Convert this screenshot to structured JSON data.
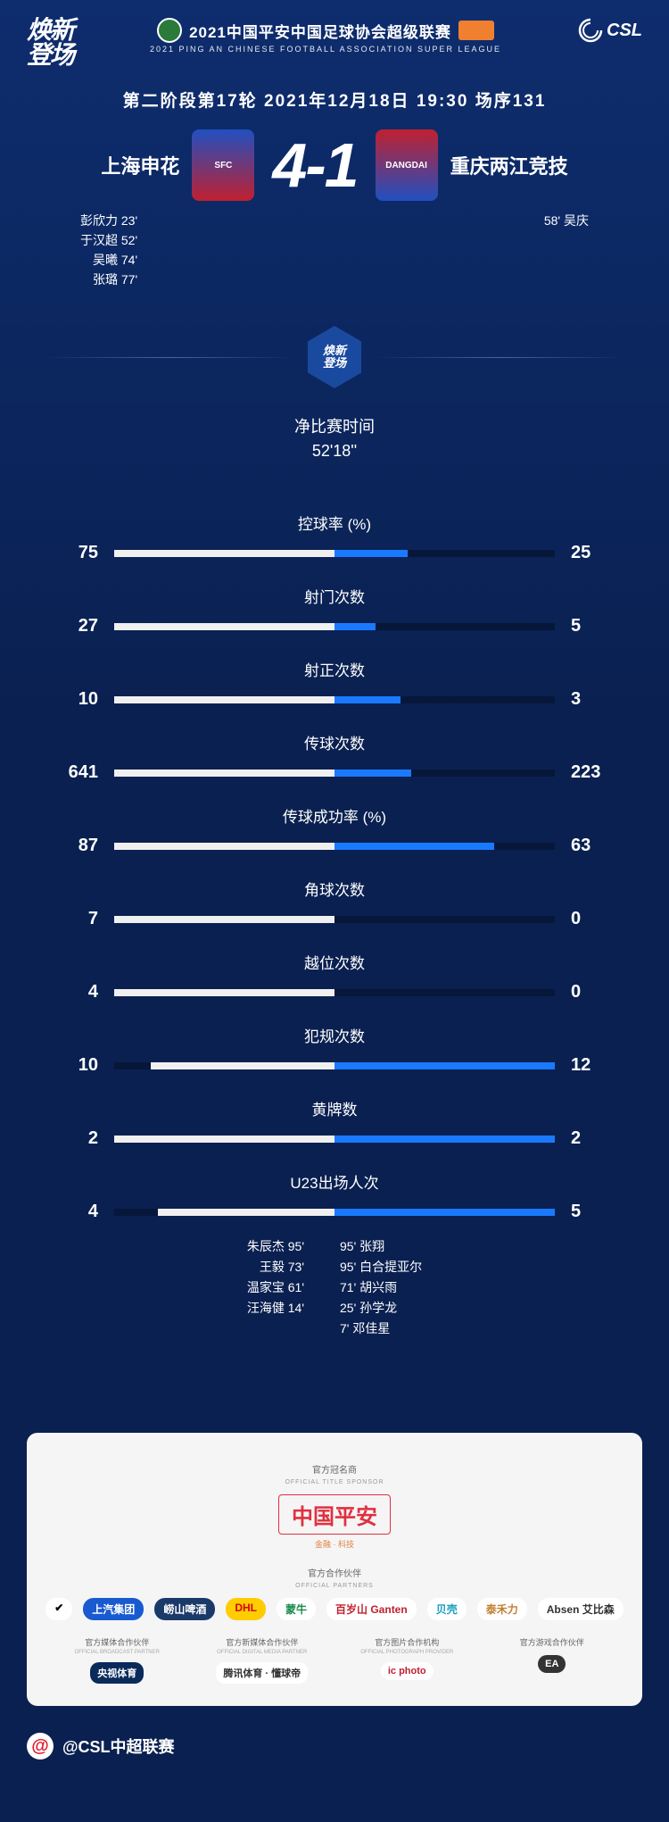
{
  "header": {
    "logo_left": "焕新\n登场",
    "title_cn": "2021中国平安中国足球协会超级联赛",
    "title_en": "2021 PING AN CHINESE FOOTBALL ASSOCIATION SUPER LEAGUE",
    "logo_right": "CSL"
  },
  "match": {
    "info": "第二阶段第17轮  2021年12月18日 19:30 场序131",
    "home_name": "上海申花",
    "away_name": "重庆两江竞技",
    "score": "4-1",
    "home_crest_text": "SFC",
    "away_crest_text": "DANGDAI",
    "home_scorers": [
      "彭欣力  23'",
      "于汉超  52'",
      "吴曦  74'",
      "张璐  77'"
    ],
    "away_scorers": [
      "58'  吴庆"
    ]
  },
  "badge_text": "焕新\n登场",
  "net_time": {
    "label": "净比赛时间",
    "value": "52'18''"
  },
  "colors": {
    "home_bar": "#f0f0f0",
    "away_bar": "#1a7aff",
    "bar_bg": "#06173a",
    "page_bg_top": "#0e2d6e",
    "page_bg_bottom": "#0a2050"
  },
  "stats": [
    {
      "label": "控球率 (%)",
      "home": 75,
      "away": 25,
      "home_pct": 50,
      "away_pct": 16.7
    },
    {
      "label": "射门次数",
      "home": 27,
      "away": 5,
      "home_pct": 50,
      "away_pct": 9.3
    },
    {
      "label": "射正次数",
      "home": 10,
      "away": 3,
      "home_pct": 50,
      "away_pct": 15
    },
    {
      "label": "传球次数",
      "home": 641,
      "away": 223,
      "home_pct": 50,
      "away_pct": 17.4
    },
    {
      "label": "传球成功率 (%)",
      "home": 87,
      "away": 63,
      "home_pct": 50,
      "away_pct": 36.2
    },
    {
      "label": "角球次数",
      "home": 7,
      "away": 0,
      "home_pct": 50,
      "away_pct": 0
    },
    {
      "label": "越位次数",
      "home": 4,
      "away": 0,
      "home_pct": 50,
      "away_pct": 0
    },
    {
      "label": "犯规次数",
      "home": 10,
      "away": 12,
      "home_pct": 41.7,
      "away_pct": 50
    },
    {
      "label": "黄牌数",
      "home": 2,
      "away": 2,
      "home_pct": 50,
      "away_pct": 50
    },
    {
      "label": "U23出场人次",
      "home": 4,
      "away": 5,
      "home_pct": 40,
      "away_pct": 50
    }
  ],
  "u23": {
    "home": [
      "朱辰杰  95'",
      "王毅  73'",
      "温家宝  61'",
      "汪海健  14'"
    ],
    "away": [
      "95'  张翔",
      "95'  白合提亚尔",
      "71'  胡兴雨",
      "25'  孙学龙",
      "7'  邓佳星"
    ]
  },
  "sponsors": {
    "title_section": {
      "label": "官方冠名商",
      "label_en": "OFFICIAL TITLE SPONSOR",
      "main": "中国平安",
      "sub": "金融 · 科技"
    },
    "partners_label": "官方合作伙伴",
    "partners_label_en": "OFFICIAL PARTNERS",
    "partners": [
      {
        "text": "✔",
        "bg": "#ffffff",
        "color": "#000000"
      },
      {
        "text": "上汽集团",
        "bg": "#1a5ad0",
        "color": "#ffffff"
      },
      {
        "text": "崂山啤酒",
        "bg": "#1a3a6a",
        "color": "#ffffff"
      },
      {
        "text": "DHL",
        "bg": "#ffcc00",
        "color": "#d40511"
      },
      {
        "text": "蒙牛",
        "bg": "#ffffff",
        "color": "#1a8a4a"
      },
      {
        "text": "百岁山 Ganten",
        "bg": "#ffffff",
        "color": "#c02030"
      },
      {
        "text": "贝壳",
        "bg": "#ffffff",
        "color": "#1aa0c0"
      },
      {
        "text": "泰禾力",
        "bg": "#ffffff",
        "color": "#c08030"
      },
      {
        "text": "Absen 艾比森",
        "bg": "#ffffff",
        "color": "#333333"
      }
    ],
    "bottom": [
      {
        "label": "官方媒体合作伙伴",
        "label_en": "OFFICIAL BROADCAST PARTNER",
        "logo": "央视体育",
        "bg": "#0a2a5a",
        "color": "#ffffff"
      },
      {
        "label": "官方新媒体合作伙伴",
        "label_en": "OFFICIAL DIGITAL MEDIA PARTNER",
        "logo": "腾讯体育 · 懂球帝",
        "bg": "#ffffff",
        "color": "#333333"
      },
      {
        "label": "官方图片合作机构",
        "label_en": "OFFICIAL PHOTOGRAPH PROVIDER",
        "logo": "ic photo",
        "bg": "#ffffff",
        "color": "#c02030"
      },
      {
        "label": "官方游戏合作伙伴",
        "label_en": "",
        "logo": "EA",
        "bg": "#333333",
        "color": "#ffffff"
      }
    ]
  },
  "footer": {
    "handle": "@CSL中超联赛"
  }
}
